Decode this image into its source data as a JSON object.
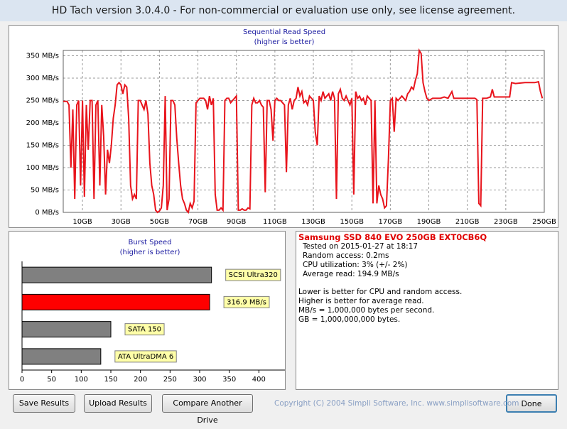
{
  "window": {
    "title": "HD Tach version 3.0.4.0  - For non-commercial or evaluation use only, see license agreement."
  },
  "chart_data": [
    {
      "type": "line",
      "title": "Sequential Read Speed",
      "subtitle": "(higher is better)",
      "x": [
        0,
        2,
        3,
        4,
        5,
        6,
        7,
        8,
        9,
        10,
        11,
        12,
        13,
        14,
        15,
        16,
        17,
        18,
        19,
        20,
        21,
        22,
        23,
        24,
        25,
        26,
        27,
        28,
        29,
        30,
        31,
        32,
        33,
        34,
        35,
        36,
        37,
        38,
        39,
        40,
        41,
        42,
        43,
        44,
        45,
        46,
        47,
        48,
        49,
        50,
        51,
        52,
        53,
        54,
        55,
        56,
        57,
        58,
        59,
        60,
        61,
        62,
        63,
        64,
        65,
        66,
        67,
        68,
        69,
        70,
        71,
        72,
        73,
        74,
        75,
        76,
        77,
        78,
        79,
        80,
        81,
        82,
        83,
        84,
        85,
        86,
        87,
        88,
        89,
        90,
        91,
        92,
        93,
        94,
        95,
        96,
        97,
        98,
        99,
        100,
        101,
        102,
        103,
        104,
        105,
        106,
        107,
        108,
        109,
        110,
        111,
        112,
        113,
        114,
        115,
        116,
        117,
        118,
        119,
        120,
        121,
        122,
        123,
        124,
        125,
        126,
        127,
        128,
        129,
        130,
        131,
        132,
        133,
        134,
        135,
        136,
        137,
        138,
        139,
        140,
        141,
        142,
        143,
        144,
        145,
        146,
        147,
        148,
        149,
        150,
        151,
        152,
        153,
        154,
        155,
        156,
        157,
        158,
        159,
        160,
        161,
        162,
        163,
        164,
        165,
        166,
        167,
        168,
        169,
        170,
        171,
        172,
        173,
        174,
        175,
        176,
        177,
        178,
        179,
        180,
        181,
        182,
        183,
        184,
        185,
        186,
        187,
        188,
        189,
        190,
        192,
        196,
        198,
        200,
        202,
        203,
        206,
        210,
        214,
        215,
        216,
        217,
        218,
        220,
        222,
        223,
        224,
        230,
        232,
        233,
        235,
        240,
        245,
        247,
        248,
        249
      ],
      "series": [
        {
          "color": "#e8141c",
          "values": [
            248,
            248,
            240,
            100,
            230,
            30,
            240,
            250,
            60,
            250,
            35,
            240,
            140,
            250,
            250,
            30,
            240,
            250,
            60,
            240,
            170,
            40,
            140,
            110,
            150,
            210,
            240,
            285,
            290,
            285,
            265,
            285,
            280,
            210,
            60,
            30,
            40,
            30,
            250,
            250,
            240,
            230,
            250,
            220,
            110,
            60,
            40,
            5,
            0,
            3,
            10,
            60,
            260,
            5,
            30,
            250,
            250,
            240,
            165,
            110,
            60,
            30,
            20,
            5,
            0,
            20,
            10,
            25,
            245,
            250,
            255,
            255,
            255,
            250,
            230,
            260,
            240,
            255,
            40,
            5,
            5,
            10,
            5,
            250,
            255,
            255,
            245,
            250,
            255,
            260,
            5,
            5,
            8,
            5,
            5,
            10,
            8,
            240,
            255,
            245,
            245,
            250,
            240,
            235,
            45,
            250,
            250,
            230,
            160,
            250,
            255,
            250,
            250,
            245,
            240,
            90,
            240,
            255,
            230,
            250,
            255,
            280,
            260,
            270,
            245,
            250,
            240,
            260,
            255,
            250,
            180,
            150,
            260,
            250,
            270,
            255,
            260,
            265,
            250,
            270,
            255,
            30,
            265,
            275,
            255,
            250,
            260,
            250,
            240,
            255,
            40,
            270,
            255,
            260,
            250,
            255,
            240,
            260,
            255,
            250,
            20,
            250,
            20,
            60,
            40,
            30,
            10,
            15,
            120,
            250,
            255,
            180,
            255,
            250,
            255,
            260,
            255,
            250,
            265,
            270,
            280,
            275,
            295,
            310,
            362,
            355,
            290,
            270,
            255,
            250,
            255,
            255,
            258,
            255,
            270,
            255,
            255,
            255,
            255,
            252,
            20,
            15,
            255,
            255,
            258,
            275,
            258,
            258,
            258,
            290,
            288,
            290,
            290,
            292,
            270,
            255
          ]
        }
      ],
      "xlim": [
        0,
        250
      ],
      "ylim": [
        0,
        362
      ],
      "xticks": [
        {
          "value": 10,
          "label": "10GB"
        },
        {
          "value": 30,
          "label": "30GB"
        },
        {
          "value": 50,
          "label": "50GB"
        },
        {
          "value": 70,
          "label": "70GB"
        },
        {
          "value": 90,
          "label": "90GB"
        },
        {
          "value": 110,
          "label": "110GB"
        },
        {
          "value": 130,
          "label": "130GB"
        },
        {
          "value": 150,
          "label": "150GB"
        },
        {
          "value": 170,
          "label": "170GB"
        },
        {
          "value": 190,
          "label": "190GB"
        },
        {
          "value": 210,
          "label": "210GB"
        },
        {
          "value": 230,
          "label": "230GB"
        },
        {
          "value": 250,
          "label": "250GB"
        }
      ],
      "yticks": [
        {
          "value": 0,
          "label": "0 MB/s"
        },
        {
          "value": 50,
          "label": "50 MB/s"
        },
        {
          "value": 100,
          "label": "100 MB/s"
        },
        {
          "value": 150,
          "label": "150 MB/s"
        },
        {
          "value": 200,
          "label": "200 MB/s"
        },
        {
          "value": 250,
          "label": "250 MB/s"
        },
        {
          "value": 300,
          "label": "300 MB/s"
        },
        {
          "value": 350,
          "label": "350 MB/s"
        }
      ],
      "grid": true
    },
    {
      "type": "bar",
      "orientation": "horizontal",
      "title": "Burst Speed",
      "subtitle": "(higher is better)",
      "categories": [
        "SCSI Ultra320",
        null,
        "SATA 150",
        "ATA UltraDMA 6"
      ],
      "values": [
        320,
        316.9,
        150,
        133
      ],
      "value_labels": [
        null,
        "316.9 MB/s",
        null,
        null
      ],
      "colors": [
        "#808080",
        "#ff0000",
        "#808080",
        "#808080"
      ],
      "xlim": [
        0,
        444
      ],
      "xticks": [
        0,
        50,
        100,
        150,
        200,
        250,
        300,
        350,
        400
      ]
    }
  ],
  "info": {
    "drive": "Samsung SSD 840 EVO 250GB EXT0CB6Q",
    "details": [
      "Tested on 2015-01-27 at 18:17",
      "Random access: 0.2ms",
      "CPU utilization: 3% (+/- 2%)",
      "Average read: 194.9 MB/s"
    ],
    "notes": [
      "Lower is better for CPU and random access.",
      "Higher is better for average read.",
      "MB/s = 1,000,000 bytes per second.",
      "GB = 1,000,000,000 bytes."
    ]
  },
  "buttons": [
    "Save Results",
    "Upload Results",
    "Compare Another Drive",
    "Done"
  ],
  "copyright": "Copyright (C) 2004 Simpli Software, Inc. www.simplisoftware.com"
}
